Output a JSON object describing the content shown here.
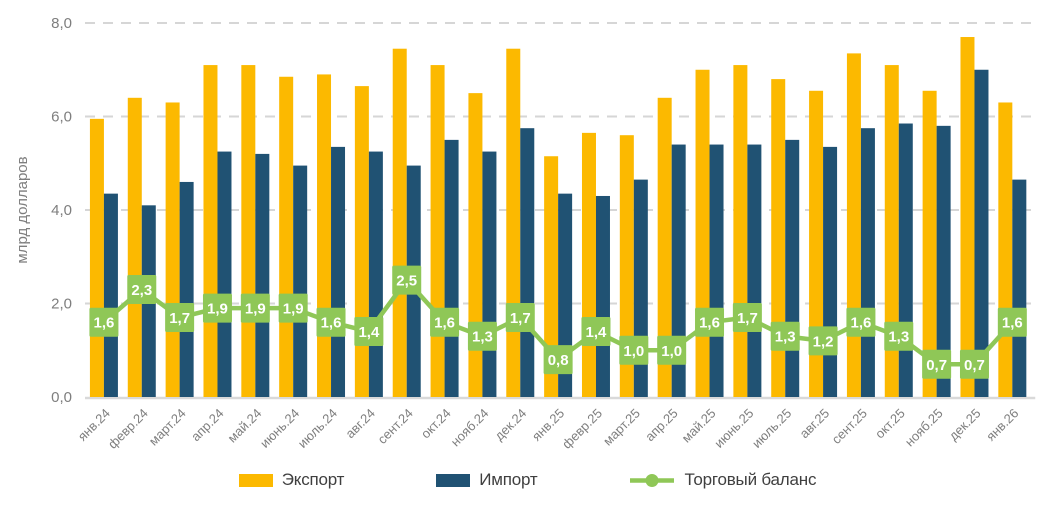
{
  "chart_data": {
    "type": "bar+line",
    "title": "",
    "ylabel": "млрд долларов",
    "ylim": [
      0,
      8
    ],
    "yticks": [
      0,
      2,
      4,
      6,
      8
    ],
    "ytick_labels": [
      "0,0",
      "2,0",
      "4,0",
      "6,0",
      "8,0"
    ],
    "grid": "horizontal dashed gridlines, solid baseline",
    "legend_position": "bottom center",
    "categories": [
      "янв.24",
      "февр.24",
      "март.24",
      "апр.24",
      "май.24",
      "июнь.24",
      "июль.24",
      "авг.24",
      "сент.24",
      "окт.24",
      "нояб.24",
      "дек.24",
      "янв.25",
      "февр.25",
      "март.25",
      "апр.25",
      "май.25",
      "июнь.25",
      "июль.25",
      "авг.25",
      "сент.25",
      "окт.25",
      "нояб.25",
      "дек.25",
      "янв.26"
    ],
    "series": [
      {
        "name": "Экспорт",
        "type": "bar",
        "color": "#FCB900",
        "values": [
          5.95,
          6.4,
          6.3,
          7.1,
          7.1,
          6.85,
          6.9,
          6.65,
          7.45,
          7.1,
          6.5,
          7.45,
          5.15,
          5.65,
          5.6,
          6.4,
          7.0,
          7.1,
          6.8,
          6.55,
          7.35,
          7.1,
          6.55,
          7.7,
          6.3
        ]
      },
      {
        "name": "Импорт",
        "type": "bar",
        "color": "#205273",
        "values": [
          4.35,
          4.1,
          4.6,
          5.25,
          5.2,
          4.95,
          5.35,
          5.25,
          4.95,
          5.5,
          5.25,
          5.75,
          4.35,
          4.3,
          4.65,
          5.4,
          5.4,
          5.4,
          5.5,
          5.35,
          5.75,
          5.85,
          5.8,
          7.0,
          4.65
        ]
      },
      {
        "name": "Торговый баланс",
        "type": "line",
        "color": "#8FC757",
        "values": [
          1.6,
          2.3,
          1.7,
          1.9,
          1.9,
          1.9,
          1.6,
          1.4,
          2.5,
          1.6,
          1.3,
          1.7,
          0.8,
          1.4,
          1.0,
          1.0,
          1.6,
          1.7,
          1.3,
          1.2,
          1.6,
          1.3,
          0.7,
          0.7,
          1.6
        ],
        "labels": [
          "1,6",
          "2,3",
          "1,7",
          "1,9",
          "1,9",
          "1,9",
          "1,6",
          "1,4",
          "2,5",
          "1,6",
          "1,3",
          "1,7",
          "0,8",
          "1,4",
          "1,0",
          "1,0",
          "1,6",
          "1,7",
          "1,3",
          "1,2",
          "1,6",
          "1,3",
          "0,7",
          "0,7",
          "1,6"
        ]
      }
    ]
  },
  "colors": {
    "export": "#FCB900",
    "import": "#205273",
    "balance": "#8FC757",
    "grid": "#D6D6D6",
    "baseline": "#D9D9D9",
    "axis_text": "#7E7E7E",
    "legend_text": "#3F3F3F",
    "point_label_text": "#FFFFFF"
  }
}
